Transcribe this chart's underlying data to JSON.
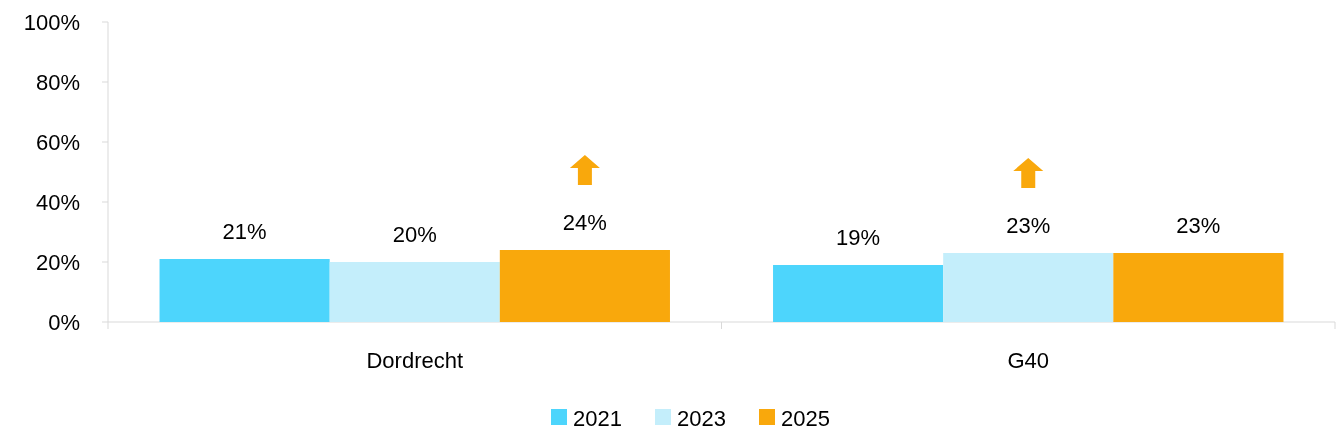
{
  "chart_data": {
    "type": "bar",
    "categories": [
      "Dordrecht",
      "G40"
    ],
    "series": [
      {
        "name": "2021",
        "color": "#4dd5fc",
        "values": [
          21,
          19
        ],
        "value_labels": [
          "21%",
          "19%"
        ]
      },
      {
        "name": "2023",
        "color": "#c4eefb",
        "values": [
          20,
          23
        ],
        "value_labels": [
          "20%",
          "23%"
        ]
      },
      {
        "name": "2025",
        "color": "#f9a80c",
        "values": [
          24,
          23
        ],
        "value_labels": [
          "24%",
          "23%"
        ]
      }
    ],
    "ylim": [
      0,
      100
    ],
    "yticks": [
      {
        "value": 0,
        "label": "0%"
      },
      {
        "value": 20,
        "label": "20%"
      },
      {
        "value": 40,
        "label": "40%"
      },
      {
        "value": 60,
        "label": "60%"
      },
      {
        "value": 80,
        "label": "80%"
      },
      {
        "value": 100,
        "label": "100%"
      }
    ],
    "grid": false,
    "legend": "bottom"
  }
}
